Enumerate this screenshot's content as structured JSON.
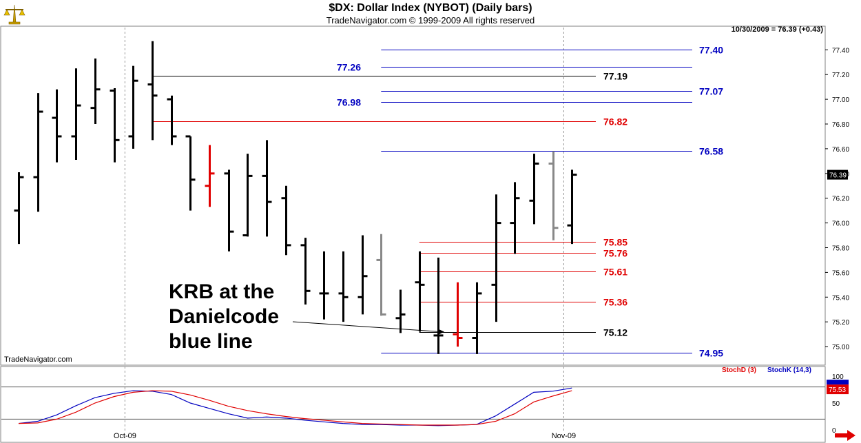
{
  "header": {
    "title": "$DX:  Dollar Index (NYBOT)  (Daily bars)",
    "subtitle": "TradeNavigator.com © 1999-2009 All rights reserved",
    "quote": "10/30/2009 = 76.39 (+0.43)",
    "watermark": "TradeNavigator.com"
  },
  "annotation": {
    "text": "KRB at the\nDanielcode\nblue line"
  },
  "colors": {
    "up_bar": "#000000",
    "down_bar": "#000000",
    "signal_red": "#e00000",
    "signal_gray": "#888888",
    "blue_line": "#0000c0",
    "red_line": "#e00000",
    "black_line": "#000000",
    "stoch_d": "#e00000",
    "stoch_k": "#0000c0"
  },
  "chart_data": {
    "type": "ohlc",
    "ylim": [
      74.85,
      77.58
    ],
    "yticks": [
      "77.40",
      "77.20",
      "77.00",
      "76.80",
      "76.60",
      "76.40",
      "76.20",
      "76.00",
      "75.80",
      "75.60",
      "75.40",
      "75.20",
      "75.00"
    ],
    "x_labels": [
      {
        "label": "Oct-09",
        "index": 6
      },
      {
        "label": "Nov-09",
        "index": 29
      }
    ],
    "last_price": "76.39",
    "bars": [
      {
        "o": 76.1,
        "h": 76.41,
        "l": 75.83,
        "c": 76.37,
        "color": "black"
      },
      {
        "o": 76.37,
        "h": 77.05,
        "l": 76.09,
        "c": 76.9,
        "color": "black"
      },
      {
        "o": 76.85,
        "h": 77.08,
        "l": 76.49,
        "c": 76.7,
        "color": "black"
      },
      {
        "o": 76.7,
        "h": 77.25,
        "l": 76.51,
        "c": 76.95,
        "color": "black"
      },
      {
        "o": 76.93,
        "h": 77.33,
        "l": 76.8,
        "c": 77.08,
        "color": "black"
      },
      {
        "o": 77.07,
        "h": 77.09,
        "l": 76.49,
        "c": 76.67,
        "color": "black"
      },
      {
        "o": 76.7,
        "h": 77.27,
        "l": 76.6,
        "c": 77.15,
        "color": "black"
      },
      {
        "o": 77.12,
        "h": 77.47,
        "l": 76.67,
        "c": 77.03,
        "color": "black"
      },
      {
        "o": 77.0,
        "h": 77.03,
        "l": 76.63,
        "c": 76.7,
        "color": "black"
      },
      {
        "o": 76.7,
        "h": 76.7,
        "l": 76.1,
        "c": 76.35,
        "color": "black"
      },
      {
        "o": 76.3,
        "h": 76.63,
        "l": 76.13,
        "c": 76.4,
        "color": "red"
      },
      {
        "o": 76.4,
        "h": 76.43,
        "l": 75.77,
        "c": 75.93,
        "color": "black"
      },
      {
        "o": 75.9,
        "h": 76.56,
        "l": 75.89,
        "c": 76.38,
        "color": "black"
      },
      {
        "o": 76.38,
        "h": 76.67,
        "l": 75.89,
        "c": 76.17,
        "color": "black"
      },
      {
        "o": 76.2,
        "h": 76.3,
        "l": 75.74,
        "c": 75.82,
        "color": "black"
      },
      {
        "o": 75.82,
        "h": 75.88,
        "l": 75.34,
        "c": 75.45,
        "color": "black"
      },
      {
        "o": 75.43,
        "h": 75.77,
        "l": 75.22,
        "c": 75.43,
        "color": "black"
      },
      {
        "o": 75.43,
        "h": 75.77,
        "l": 75.2,
        "c": 75.4,
        "color": "black"
      },
      {
        "o": 75.4,
        "h": 75.9,
        "l": 75.26,
        "c": 75.57,
        "color": "black"
      },
      {
        "o": 75.7,
        "h": 75.91,
        "l": 75.25,
        "c": 75.26,
        "color": "gray"
      },
      {
        "o": 75.23,
        "h": 75.46,
        "l": 75.11,
        "c": 75.26,
        "color": "black"
      },
      {
        "o": 75.52,
        "h": 75.77,
        "l": 75.12,
        "c": 75.5,
        "color": "black"
      },
      {
        "o": 75.09,
        "h": 75.72,
        "l": 74.94,
        "c": 75.09,
        "color": "black"
      },
      {
        "o": 75.1,
        "h": 75.52,
        "l": 75.0,
        "c": 75.07,
        "color": "red"
      },
      {
        "o": 75.07,
        "h": 75.52,
        "l": 74.94,
        "c": 75.43,
        "color": "black"
      },
      {
        "o": 75.5,
        "h": 76.23,
        "l": 75.2,
        "c": 76.0,
        "color": "black"
      },
      {
        "o": 76.0,
        "h": 76.33,
        "l": 75.75,
        "c": 76.2,
        "color": "black"
      },
      {
        "o": 76.18,
        "h": 76.56,
        "l": 75.99,
        "c": 76.48,
        "color": "black"
      },
      {
        "o": 76.48,
        "h": 76.58,
        "l": 75.86,
        "c": 75.96,
        "color": "gray"
      },
      {
        "o": 75.98,
        "h": 76.43,
        "l": 75.83,
        "c": 76.39,
        "color": "black"
      }
    ],
    "levels": [
      {
        "value": "77.40",
        "color": "blue",
        "start": 19,
        "label_side": "right"
      },
      {
        "value": "77.26",
        "color": "blue",
        "start": 19,
        "label_side": "left"
      },
      {
        "value": "77.19",
        "color": "black",
        "start": 7,
        "label_side": "mid"
      },
      {
        "value": "77.07",
        "color": "blue",
        "start": 19,
        "label_side": "right"
      },
      {
        "value": "76.98",
        "color": "blue",
        "start": 19,
        "label_side": "left"
      },
      {
        "value": "76.82",
        "color": "red",
        "start": 7,
        "label_side": "mid"
      },
      {
        "value": "76.58",
        "color": "blue",
        "start": 19,
        "label_side": "right"
      },
      {
        "value": "75.85",
        "color": "red",
        "start": 21,
        "label_side": "mid"
      },
      {
        "value": "75.76",
        "color": "red",
        "start": 21,
        "label_side": "mid"
      },
      {
        "value": "75.61",
        "color": "red",
        "start": 21,
        "label_side": "mid"
      },
      {
        "value": "75.36",
        "color": "red",
        "start": 21,
        "label_side": "mid"
      },
      {
        "value": "75.12",
        "color": "black",
        "start": 21,
        "label_side": "mid"
      },
      {
        "value": "74.95",
        "color": "blue",
        "start": 19,
        "label_side": "right"
      }
    ],
    "stochastic": {
      "ylim": [
        0,
        100
      ],
      "yticks": [
        "100",
        "50",
        "0"
      ],
      "overbought": 80,
      "oversold": 20,
      "last_value": "75.53",
      "legend_d": "StochD (3)",
      "legend_k": "StochK (14,3)",
      "k": [
        12,
        16,
        28,
        45,
        60,
        68,
        73,
        72,
        66,
        50,
        40,
        30,
        22,
        24,
        22,
        18,
        15,
        12,
        10,
        10,
        9,
        9,
        8,
        9,
        10,
        26,
        48,
        70,
        72,
        78
      ],
      "d": [
        12,
        13,
        20,
        33,
        50,
        62,
        70,
        73,
        72,
        65,
        55,
        44,
        36,
        30,
        25,
        21,
        18,
        15,
        12,
        11,
        10,
        9,
        9,
        9,
        10,
        16,
        30,
        52,
        63,
        73
      ]
    }
  }
}
